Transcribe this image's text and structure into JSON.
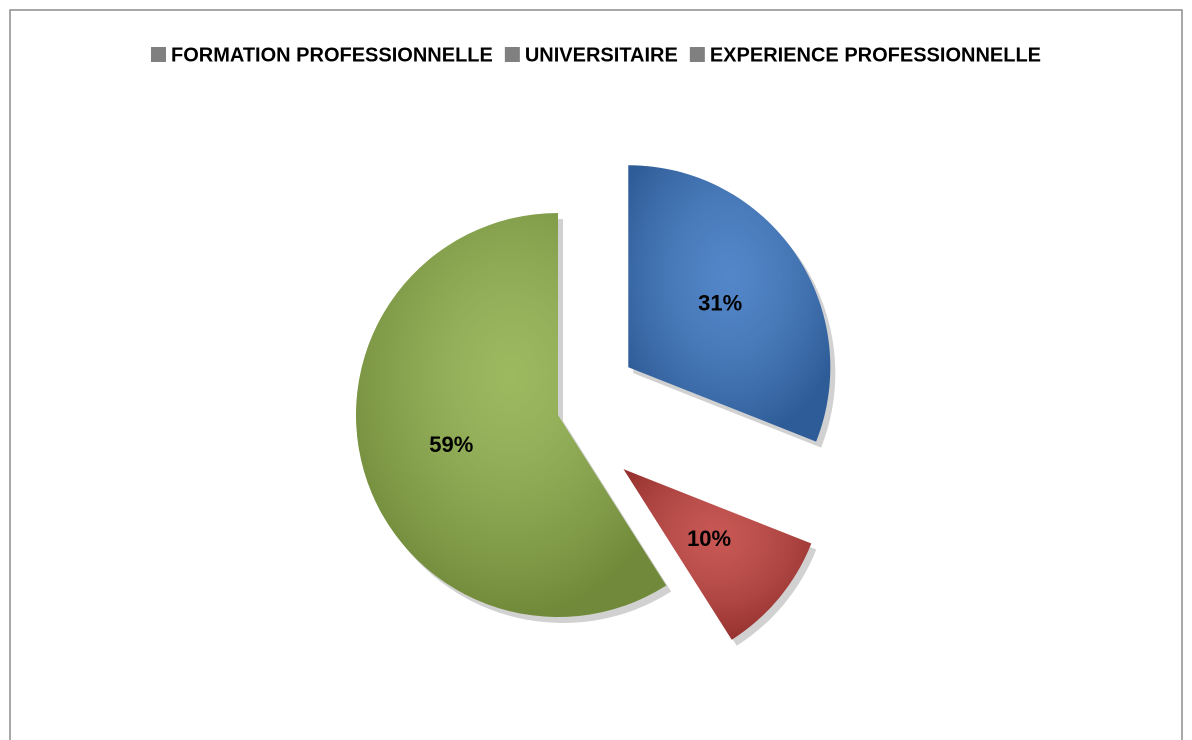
{
  "chart_data": {
    "type": "pie",
    "categories": [
      "FORMATION PROFESSIONNELLE",
      "UNIVERSITAIRE",
      "EXPERIENCE PROFESSIONNELLE"
    ],
    "values": [
      31,
      10,
      59
    ],
    "value_labels": [
      "31%",
      "10%",
      "59%"
    ],
    "colors": [
      "#3b76c2",
      "#c0403c",
      "#8fb04a"
    ],
    "legend_color": "#808080",
    "legend": "top",
    "exploded": [
      true,
      true,
      false
    ]
  }
}
